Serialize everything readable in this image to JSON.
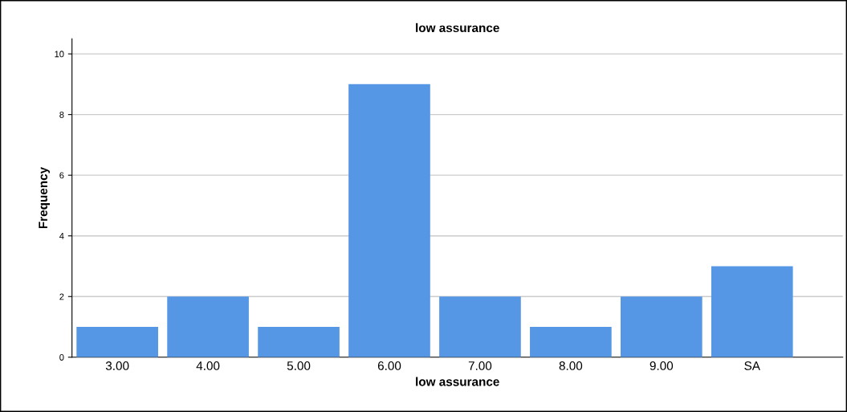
{
  "chart_data": {
    "type": "bar",
    "title": "low assurance",
    "xlabel": "low assurance",
    "ylabel": "Frequency",
    "categories": [
      "3.00",
      "4.00",
      "5.00",
      "6.00",
      "7.00",
      "8.00",
      "9.00",
      "SA"
    ],
    "values": [
      1,
      2,
      1,
      9,
      2,
      1,
      2,
      3
    ],
    "color": "#5596e5",
    "ylim": [
      0,
      10.5
    ],
    "yticks": [
      0,
      2,
      4,
      6,
      8,
      10
    ],
    "grid": "y"
  }
}
